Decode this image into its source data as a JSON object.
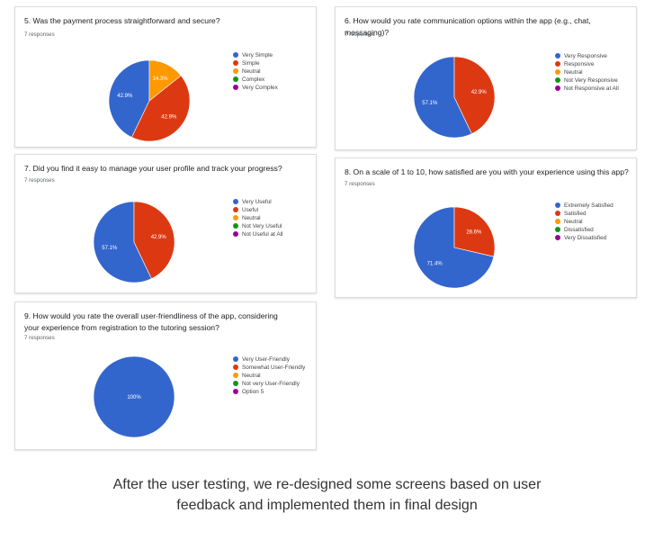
{
  "colors": [
    "#3366cc",
    "#dc3912",
    "#ff9900",
    "#109618",
    "#990099"
  ],
  "caption": {
    "line1": "After the user testing, we re-designed some screens based on user",
    "line2": "feedback and implemented them in final design"
  },
  "chart_data": [
    {
      "type": "pie",
      "title": "5. Was the payment process straightforward and secure?",
      "responses": "7 responses",
      "categories": [
        "Very Simple",
        "Simple",
        "Neutral",
        "Complex",
        "Very Complex"
      ],
      "values": [
        42.9,
        42.9,
        14.3,
        0,
        0
      ],
      "labels": [
        "42.9%",
        "42.9%",
        "14.3%",
        "",
        ""
      ]
    },
    {
      "type": "pie",
      "title": "6. How would you rate communication options within the app (e.g., chat, messaging)?",
      "responses": "7 responses",
      "categories": [
        "Very Responsive",
        "Responsive",
        "Neutral",
        "Not Very Responsive",
        "Not Responsive at All"
      ],
      "values": [
        57.1,
        42.9,
        0,
        0,
        0
      ],
      "labels": [
        "57.1%",
        "42.9%",
        "",
        "",
        ""
      ]
    },
    {
      "type": "pie",
      "title": "7. Did you find it easy to manage your user profile and track your progress?",
      "responses": "7 responses",
      "categories": [
        "Very Useful",
        "Useful",
        "Neutral",
        "Not Very Useful",
        "Not Useful at All"
      ],
      "values": [
        57.1,
        42.9,
        0,
        0,
        0
      ],
      "labels": [
        "57.1%",
        "42.9%",
        "",
        "",
        ""
      ]
    },
    {
      "type": "pie",
      "title": "8. On a scale of 1 to 10, how satisfied are you with your experience using this app?",
      "responses": "7 responses",
      "categories": [
        "Extremely Satisfied",
        "Satisfied",
        "Neutral",
        "Dissatisfied",
        "Very Dissatisfied"
      ],
      "values": [
        71.4,
        28.6,
        0,
        0,
        0
      ],
      "labels": [
        "71.4%",
        "28.6%",
        "",
        "",
        ""
      ]
    },
    {
      "type": "pie",
      "title": "9. How would you rate the overall user-friendliness of the app, considering your experience from registration to the tutoring session?",
      "responses": "7 responses",
      "categories": [
        "Very User-Friendly",
        "Somewhat User-Friendly",
        "Neutral",
        "Not very User-Friendly",
        "Option 5"
      ],
      "values": [
        100,
        0,
        0,
        0,
        0
      ],
      "labels": [
        "100%",
        "",
        "",
        "",
        ""
      ]
    }
  ]
}
